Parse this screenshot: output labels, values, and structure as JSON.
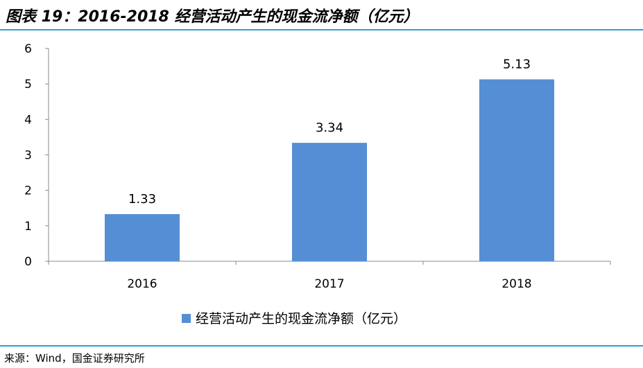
{
  "header": {
    "title": "图表 19：2016-2018 经营活动产生的现金流净额（亿元）"
  },
  "footer": {
    "source": "来源：Wind，国金证券研究所"
  },
  "colors": {
    "bar": "#558ed5",
    "rule": "#2e9bd6",
    "axis": "#898989"
  },
  "chart_data": {
    "type": "bar",
    "categories": [
      "2016",
      "2017",
      "2018"
    ],
    "series": [
      {
        "name": "经营活动产生的现金流净额（亿元）",
        "values": [
          1.33,
          3.34,
          5.13
        ]
      }
    ],
    "data_labels": [
      "1.33",
      "3.34",
      "5.13"
    ],
    "yticks": [
      "0",
      "1",
      "2",
      "3",
      "4",
      "5",
      "6"
    ],
    "ylim": [
      0,
      6
    ],
    "grid": false,
    "legend": "bottom",
    "title": "",
    "xlabel": "",
    "ylabel": ""
  }
}
